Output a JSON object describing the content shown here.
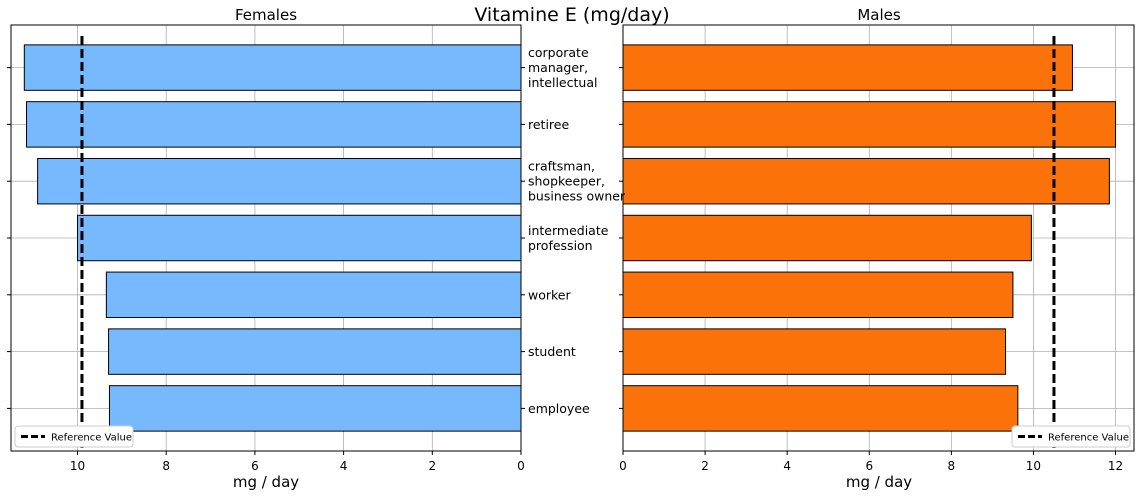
{
  "title": "Vitamine E (mg/day)",
  "chart_data": [
    {
      "type": "bar",
      "orientation": "horizontal",
      "title": "Females",
      "xlabel": "mg / day",
      "ylabel": "",
      "xlim": [
        11.5,
        0
      ],
      "x_inverted": true,
      "xticks": [
        10,
        8,
        6,
        4,
        2,
        0
      ],
      "grid": true,
      "bar_color": "#77b9ff",
      "categories": [
        "corporate\nmanager,\nintellectual",
        "retiree",
        "craftsman,\nshopkeeper,\nbusiness owner",
        "intermediate\nprofession",
        "worker",
        "student",
        "employee"
      ],
      "values": [
        11.2,
        11.15,
        10.9,
        10.0,
        9.35,
        9.3,
        9.28
      ],
      "reference_value": 9.9,
      "legend": {
        "label": "Reference Value",
        "placement": "lower left"
      }
    },
    {
      "type": "bar",
      "orientation": "horizontal",
      "title": "Males",
      "xlabel": "mg / day",
      "ylabel": "",
      "xlim": [
        0,
        12.45
      ],
      "xticks": [
        0,
        2,
        4,
        6,
        8,
        10,
        12
      ],
      "grid": true,
      "bar_color": "#fb710a",
      "categories": [
        "corporate\nmanager,\nintellectual",
        "retiree",
        "craftsman,\nshopkeeper,\nbusiness owner",
        "intermediate\nprofession",
        "worker",
        "student",
        "employee"
      ],
      "values": [
        10.95,
        12.0,
        11.85,
        9.95,
        9.5,
        9.32,
        9.62
      ],
      "reference_value": 10.5,
      "legend": {
        "label": "Reference Value",
        "placement": "lower right"
      }
    }
  ]
}
